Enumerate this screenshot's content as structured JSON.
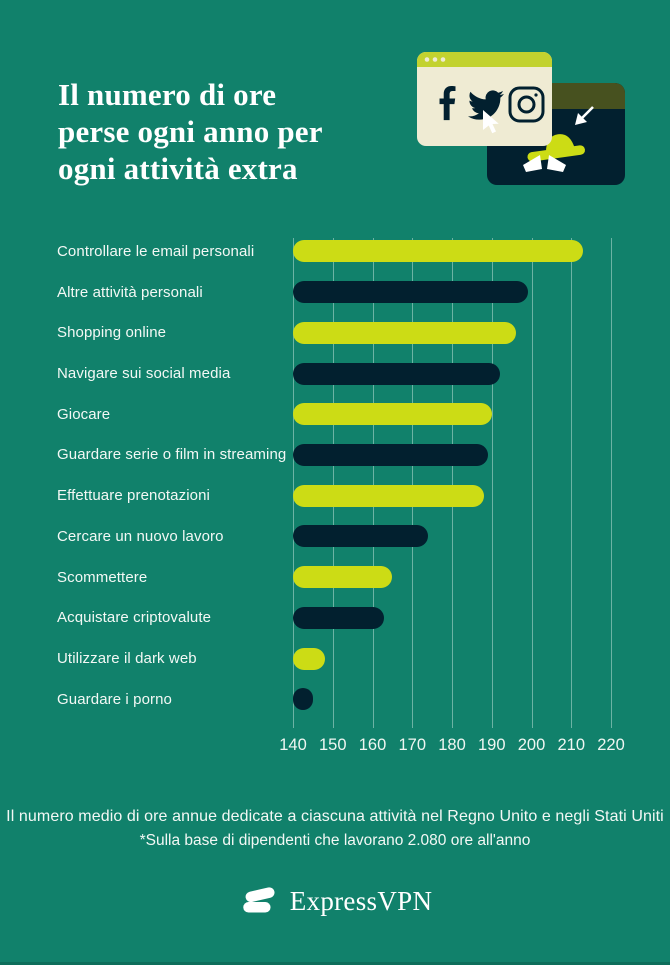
{
  "header": {
    "title_lines": [
      "Il numero di ore",
      "perse ogni anno per",
      "ogni attività extra"
    ]
  },
  "illustration": {
    "description": "browser-window-with-social-icons-and-spy-window",
    "icons": [
      "facebook-icon",
      "twitter-icon",
      "instagram-icon",
      "pointer-cursor-icon",
      "spy-hat-icon",
      "spy-eyes-icon",
      "arrow-cursor-icon"
    ]
  },
  "chart_data": {
    "type": "bar",
    "orientation": "horizontal",
    "title": "Il numero di ore perse ogni anno per ogni attività extra",
    "categories": [
      "Controllare le email personali",
      "Altre attività personali",
      "Shopping online",
      "Navigare sui social media",
      "Giocare",
      "Guardare serie o film in streaming",
      "Effettuare prenotazioni",
      "Cercare un nuovo lavoro",
      "Scommettere",
      "Acquistare criptovalute",
      "Utilizzare il dark web",
      "Guardare i porno"
    ],
    "values": [
      213,
      199,
      196,
      192,
      190,
      189,
      188,
      174,
      165,
      163,
      148,
      145
    ],
    "unit": "ore all'anno",
    "xlim": [
      140,
      220
    ],
    "x_ticks": [
      140,
      150,
      160,
      170,
      180,
      190,
      200,
      210,
      220
    ],
    "grid": true,
    "legend": "none",
    "bar_color_pattern": [
      "#CCDC15",
      "#02202F"
    ]
  },
  "footer": {
    "caption": "Il numero medio di ore annue dedicate a ciascuna attività nel Regno Unito e negli Stati Uniti",
    "footnote": "*Sulla base di dipendenti che lavorano 2.080 ore all'anno",
    "brand": "ExpressVPN"
  },
  "colors": {
    "background": "#11816B",
    "bar_lime": "#CCDC15",
    "bar_navy": "#02202F",
    "text": "#FFFFFF",
    "cream_window": "#EFEBD3",
    "window_titlebar": "#C2D22F",
    "window_olive_band": "#47511F",
    "gridline": "rgba(237,247,242,0.42)"
  }
}
